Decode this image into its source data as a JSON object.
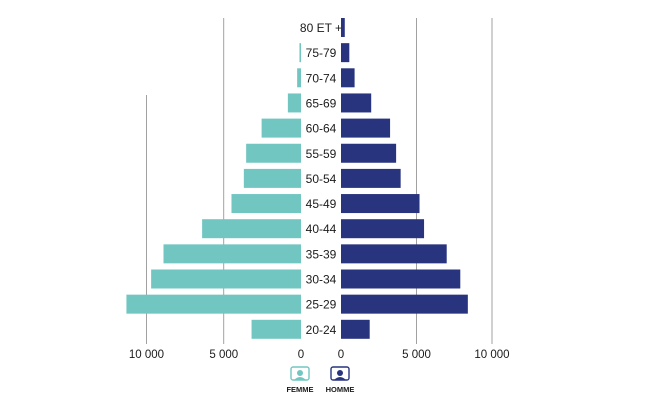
{
  "chart_data": {
    "type": "bar",
    "orientation": "horizontal-population-pyramid",
    "title": "",
    "xlabel": "",
    "ylabel": "",
    "categories": [
      "80 ET +",
      "75-79",
      "70-74",
      "65-69",
      "60-64",
      "55-59",
      "50-54",
      "45-49",
      "40-44",
      "35-39",
      "30-34",
      "25-29",
      "20-24"
    ],
    "series": [
      {
        "name": "FEMME",
        "color": "#72c6c2",
        "values": [
          0,
          100,
          250,
          850,
          2550,
          3550,
          3700,
          4500,
          6400,
          8900,
          9700,
          11300,
          3200
        ]
      },
      {
        "name": "HOMME",
        "color": "#29347f",
        "values": [
          250,
          550,
          900,
          2000,
          3250,
          3650,
          3950,
          5200,
          5500,
          7000,
          7900,
          8400,
          1900
        ]
      }
    ],
    "left_axis_ticks": [
      "10 000",
      "5 000",
      "0"
    ],
    "right_axis_ticks": [
      "0",
      "5 000",
      "10 000"
    ],
    "xlim": [
      0,
      11500
    ],
    "grid": true,
    "legend_position": "bottom-center"
  }
}
